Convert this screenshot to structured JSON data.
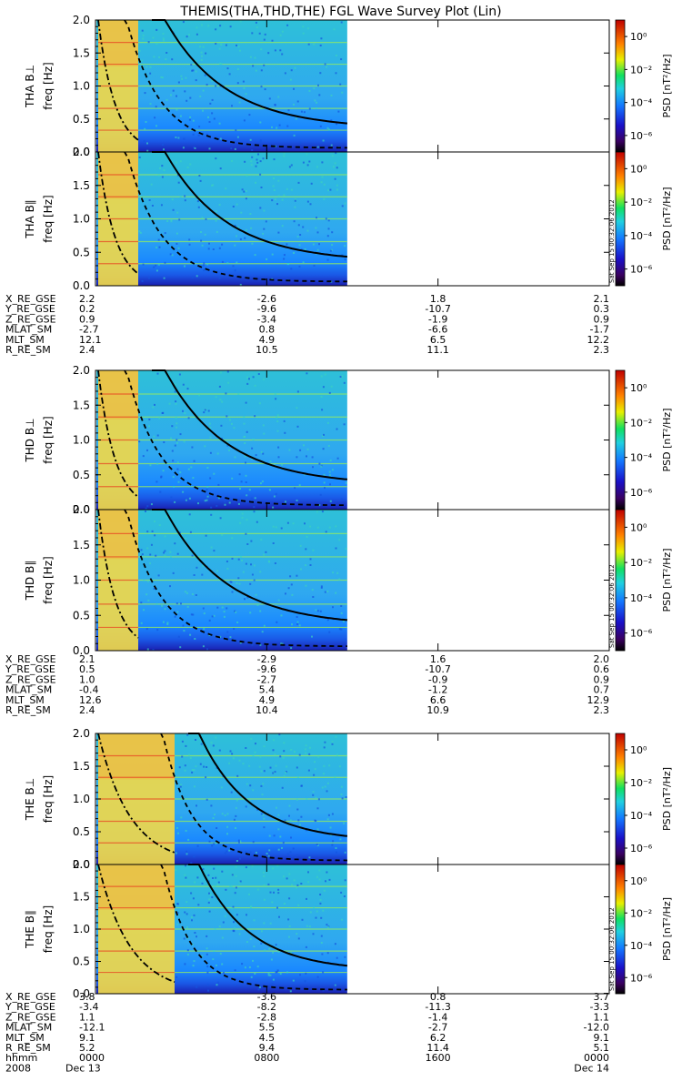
{
  "title": "THEMIS(THA,THD,THE) FGL Wave Survey Plot (Lin)",
  "stamp": "Sat Sep 15 00:32:06 2012",
  "colorbar": {
    "label": "PSD [nT²/Hz]",
    "ticks": [
      "10⁰",
      "10⁻²",
      "10⁻⁴",
      "10⁻⁶"
    ]
  },
  "chart_data": {
    "type": "heatmap",
    "time_range": [
      "2008 Dec 13 0000",
      "2008 Dec 14 0000"
    ],
    "data_end_fraction_of_day": 0.49,
    "x_tick_labels": [
      "0000",
      "0800",
      "1600",
      "0000"
    ],
    "x_date_labels": [
      "Dec 13",
      "Dec 14"
    ],
    "x_year_label": "2008",
    "x_row_label": "hhmm",
    "ylabel": "freq [Hz]",
    "ylim": [
      0,
      2.0
    ],
    "yticks": [
      "0.0",
      "0.5",
      "1.0",
      "1.5",
      "2.0"
    ],
    "colorbar_range_log10": [
      -7,
      1
    ],
    "panels": [
      {
        "probe": "THA",
        "label": "THA B⊥",
        "component": "perp"
      },
      {
        "probe": "THA",
        "label": "THA B∥",
        "component": "par"
      },
      {
        "probe": "THD",
        "label": "THD B⊥",
        "component": "perp"
      },
      {
        "probe": "THD",
        "label": "THD B∥",
        "component": "par"
      },
      {
        "probe": "THE",
        "label": "THE B⊥",
        "component": "perp"
      },
      {
        "probe": "THE",
        "label": "THE B∥",
        "component": "par"
      }
    ],
    "ephemeris": [
      {
        "probe": "THA",
        "rows": [
          {
            "name": "X_RE_GSE",
            "values": [
              "2.2",
              "-2.6",
              "1.8",
              "2.1"
            ]
          },
          {
            "name": "Y_RE_GSE",
            "values": [
              "0.2",
              "-9.6",
              "-10.7",
              "0.3"
            ]
          },
          {
            "name": "Z_RE_GSE",
            "values": [
              "0.9",
              "-3.4",
              "-1.9",
              "0.9"
            ]
          },
          {
            "name": "MLAT_SM",
            "values": [
              "-2.7",
              "0.8",
              "-6.6",
              "-1.7"
            ]
          },
          {
            "name": "MLT_SM",
            "values": [
              "12.1",
              "4.9",
              "6.5",
              "12.2"
            ]
          },
          {
            "name": "R_RE_SM",
            "values": [
              "2.4",
              "10.5",
              "11.1",
              "2.3"
            ]
          }
        ]
      },
      {
        "probe": "THD",
        "rows": [
          {
            "name": "X_RE_GSE",
            "values": [
              "2.1",
              "-2.9",
              "1.6",
              "2.0"
            ]
          },
          {
            "name": "Y_RE_GSE",
            "values": [
              "0.5",
              "-9.6",
              "-10.7",
              "0.6"
            ]
          },
          {
            "name": "Z_RE_GSE",
            "values": [
              "1.0",
              "-2.7",
              "-0.9",
              "0.9"
            ]
          },
          {
            "name": "MLAT_SM",
            "values": [
              "-0.4",
              "5.4",
              "-1.2",
              "0.7"
            ]
          },
          {
            "name": "MLT_SM",
            "values": [
              "12.6",
              "4.9",
              "6.6",
              "12.9"
            ]
          },
          {
            "name": "R_RE_SM",
            "values": [
              "2.4",
              "10.4",
              "10.9",
              "2.3"
            ]
          }
        ]
      },
      {
        "probe": "THE",
        "rows": [
          {
            "name": "X_RE_GSE",
            "values": [
              "3.8",
              "-3.6",
              "0.8",
              "3.7"
            ]
          },
          {
            "name": "Y_RE_GSE",
            "values": [
              "-3.4",
              "-8.2",
              "-11.3",
              "-3.3"
            ]
          },
          {
            "name": "Z_RE_GSE",
            "values": [
              "1.1",
              "-2.8",
              "-1.4",
              "1.1"
            ]
          },
          {
            "name": "MLAT_SM",
            "values": [
              "-12.1",
              "5.5",
              "-2.7",
              "-12.0"
            ]
          },
          {
            "name": "MLT_SM",
            "values": [
              "9.1",
              "4.5",
              "6.2",
              "9.1"
            ]
          },
          {
            "name": "R_RE_SM",
            "values": [
              "5.2",
              "9.4",
              "11.4",
              "5.1"
            ]
          }
        ]
      }
    ]
  }
}
